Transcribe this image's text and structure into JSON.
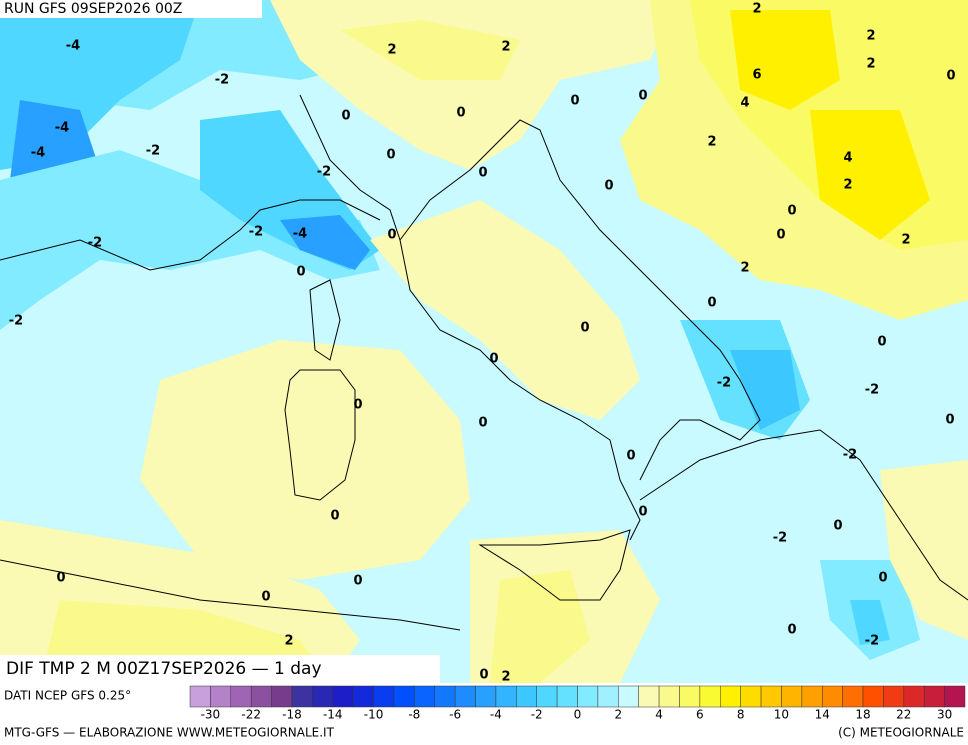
{
  "header": {
    "run": "RUN GFS 09SEP2026 00Z"
  },
  "map": {
    "title": "DIF TMP 2 M 00Z17SEP2026 — 1 day",
    "source": "DATI NCEP GFS 0.25°",
    "contour_labels": [
      -4,
      -4,
      -4,
      -2,
      -2,
      -2,
      -2,
      -2,
      -4,
      -2,
      0,
      0,
      0,
      2,
      2,
      0,
      0,
      0,
      0,
      0,
      0,
      2,
      2,
      6,
      4,
      2,
      2,
      0,
      4,
      2,
      0,
      0,
      2,
      2,
      0,
      0,
      0,
      0,
      0,
      0,
      -2,
      0,
      -2,
      0,
      -2,
      0,
      0,
      -2,
      0,
      0,
      0,
      0,
      0,
      0,
      -2,
      2,
      0,
      2
    ]
  },
  "legend": {
    "ticks": [
      -30,
      -22,
      -18,
      -14,
      -10,
      -8,
      -6,
      -4,
      -2,
      0,
      2,
      4,
      6,
      8,
      10,
      14,
      18,
      22,
      30
    ],
    "colors": [
      "#c8a0dc",
      "#b482c8",
      "#a064b4",
      "#8c50a0",
      "#783c8c",
      "#3c32a0",
      "#2828b4",
      "#1e1ec8",
      "#1428dc",
      "#0a3cf0",
      "#0050ff",
      "#0a64ff",
      "#1478ff",
      "#1e8cff",
      "#28a0ff",
      "#32b4ff",
      "#3cc8ff",
      "#50d7ff",
      "#64e1ff",
      "#82ebff",
      "#a0f0ff",
      "#c8faff",
      "#fafab4",
      "#fafa8c",
      "#fafa64",
      "#fafa32",
      "#fff000",
      "#ffdc00",
      "#ffc800",
      "#ffb400",
      "#ffa000",
      "#ff8c00",
      "#ff6e00",
      "#ff5000",
      "#f03c14",
      "#dc2828",
      "#c81e3c",
      "#b41450"
    ]
  },
  "footer": {
    "left": "MTG-GFS — ELABORAZIONE WWW.METEOGIORNALE.IT",
    "right": "(C) METEOGIORNALE"
  }
}
